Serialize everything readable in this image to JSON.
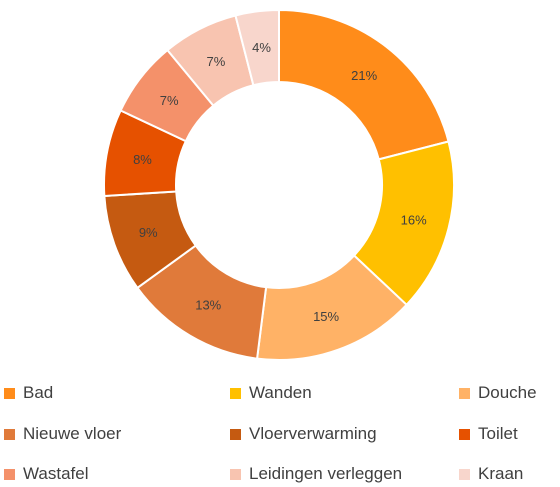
{
  "chart_data": {
    "type": "pie",
    "title": "",
    "categories": [
      "Bad",
      "Wanden",
      "Douche",
      "Nieuwe vloer",
      "Vloerverwarming",
      "Toilet",
      "Wastafel",
      "Leidingen verleggen",
      "Kraan"
    ],
    "values": [
      21,
      16,
      15,
      13,
      9,
      8,
      7,
      7,
      4
    ],
    "data_labels": [
      "21%",
      "16%",
      "15%",
      "13%",
      "9%",
      "8%",
      "7%",
      "7%",
      "4%"
    ],
    "colors": [
      "#FF8C1A",
      "#FFC000",
      "#FFB266",
      "#E07A3A",
      "#C55A11",
      "#E65100",
      "#F4916A",
      "#F8C4B0",
      "#F8D6CC"
    ],
    "donut": true,
    "legend_position": "bottom"
  }
}
